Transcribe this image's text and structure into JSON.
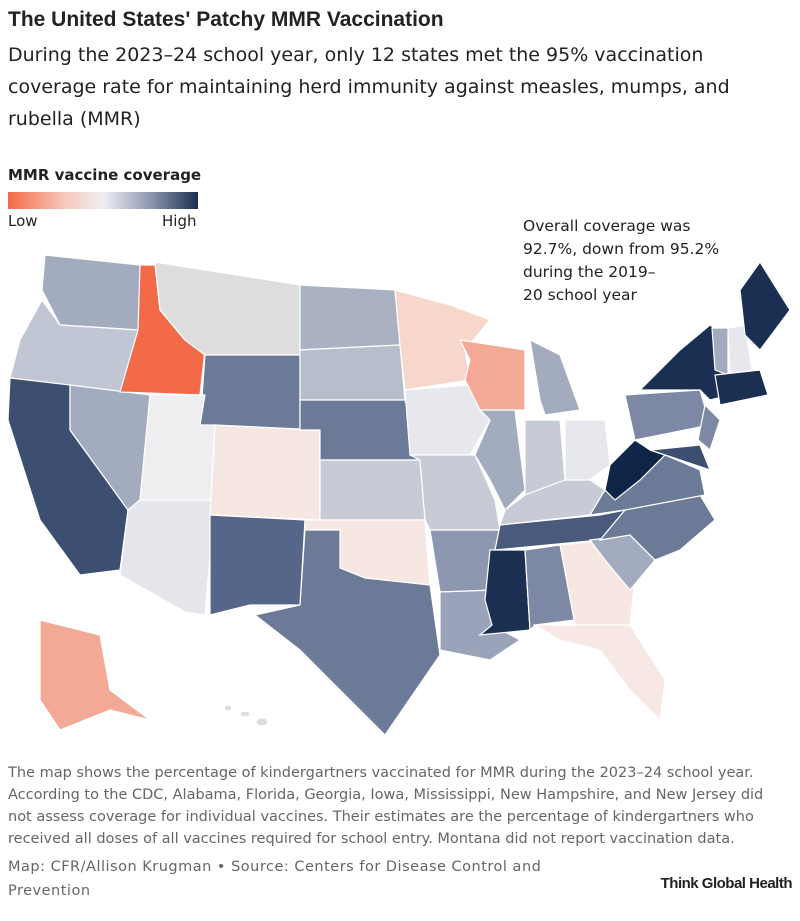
{
  "title": "The United States' Patchy MMR Vaccination",
  "subtitle": [
    "During the 2023–24 school year, only 12 states met the 95% vaccination",
    "coverage rate for maintaining herd immunity against measles, mumps, and",
    "rubella (MMR)"
  ],
  "legend": {
    "title": "MMR vaccine coverage",
    "low": "Low",
    "high": "High"
  },
  "annotation": [
    "Overall coverage was",
    "92.7%, down from 95.2%",
    "during the 2019–",
    "20 school year"
  ],
  "footnote": [
    "The map shows the percentage of kindergartners vaccinated for MMR during the 2023–24 school year.",
    "According to the CDC, Alabama, Florida, Georgia, Iowa, Mississippi, New Hampshire, and New Jersey did",
    "not assess coverage for individual vaccines. Their estimates are the percentage of kindergartners who",
    "received all doses of all vaccines required for school entry. Montana did not report vaccination data."
  ],
  "source": [
    "Map: CFR/Allison Krugman • Source: Centers for Disease Control and",
    "Prevention"
  ],
  "logo": "Think Global Health"
}
